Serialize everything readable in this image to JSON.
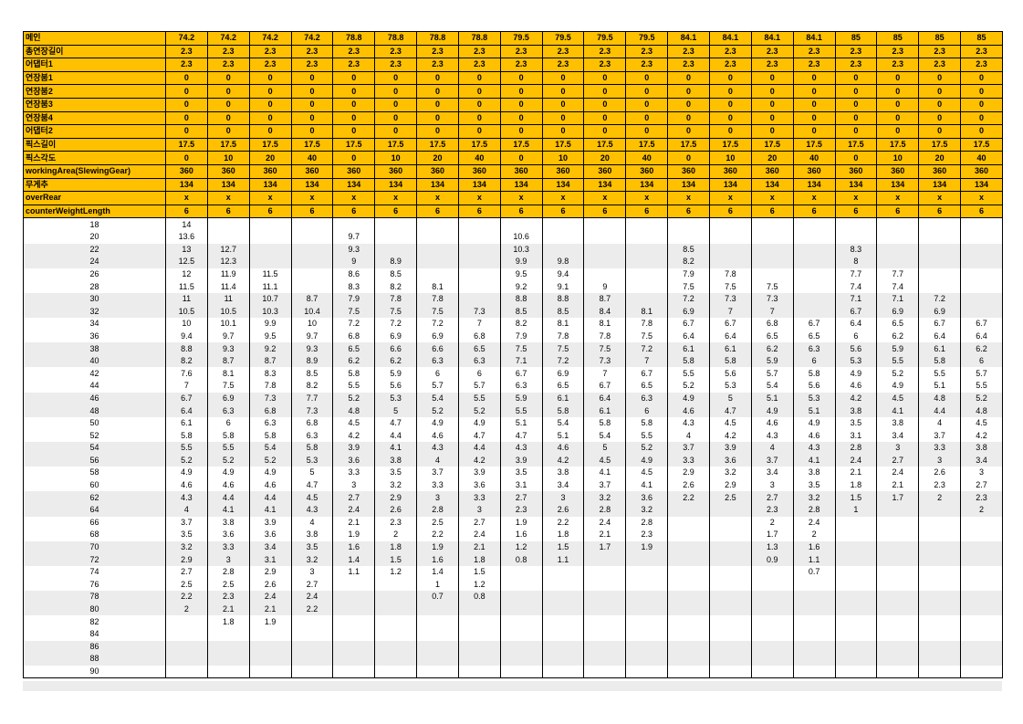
{
  "header_rows": [
    {
      "label": "메인",
      "values": [
        "74.2",
        "74.2",
        "74.2",
        "74.2",
        "78.8",
        "78.8",
        "78.8",
        "78.8",
        "79.5",
        "79.5",
        "79.5",
        "79.5",
        "84.1",
        "84.1",
        "84.1",
        "84.1",
        "85",
        "85",
        "85",
        "85"
      ]
    },
    {
      "label": "총연장길이",
      "values": [
        "2.3",
        "2.3",
        "2.3",
        "2.3",
        "2.3",
        "2.3",
        "2.3",
        "2.3",
        "2.3",
        "2.3",
        "2.3",
        "2.3",
        "2.3",
        "2.3",
        "2.3",
        "2.3",
        "2.3",
        "2.3",
        "2.3",
        "2.3"
      ]
    },
    {
      "label": "어댑터1",
      "values": [
        "2.3",
        "2.3",
        "2.3",
        "2.3",
        "2.3",
        "2.3",
        "2.3",
        "2.3",
        "2.3",
        "2.3",
        "2.3",
        "2.3",
        "2.3",
        "2.3",
        "2.3",
        "2.3",
        "2.3",
        "2.3",
        "2.3",
        "2.3"
      ]
    },
    {
      "label": "연장붐1",
      "values": [
        "0",
        "0",
        "0",
        "0",
        "0",
        "0",
        "0",
        "0",
        "0",
        "0",
        "0",
        "0",
        "0",
        "0",
        "0",
        "0",
        "0",
        "0",
        "0",
        "0"
      ]
    },
    {
      "label": "연장붐2",
      "values": [
        "0",
        "0",
        "0",
        "0",
        "0",
        "0",
        "0",
        "0",
        "0",
        "0",
        "0",
        "0",
        "0",
        "0",
        "0",
        "0",
        "0",
        "0",
        "0",
        "0"
      ]
    },
    {
      "label": "연장붐3",
      "values": [
        "0",
        "0",
        "0",
        "0",
        "0",
        "0",
        "0",
        "0",
        "0",
        "0",
        "0",
        "0",
        "0",
        "0",
        "0",
        "0",
        "0",
        "0",
        "0",
        "0"
      ]
    },
    {
      "label": "연장붐4",
      "values": [
        "0",
        "0",
        "0",
        "0",
        "0",
        "0",
        "0",
        "0",
        "0",
        "0",
        "0",
        "0",
        "0",
        "0",
        "0",
        "0",
        "0",
        "0",
        "0",
        "0"
      ]
    },
    {
      "label": "어댑터2",
      "values": [
        "0",
        "0",
        "0",
        "0",
        "0",
        "0",
        "0",
        "0",
        "0",
        "0",
        "0",
        "0",
        "0",
        "0",
        "0",
        "0",
        "0",
        "0",
        "0",
        "0"
      ]
    },
    {
      "label": "픽스길이",
      "values": [
        "17.5",
        "17.5",
        "17.5",
        "17.5",
        "17.5",
        "17.5",
        "17.5",
        "17.5",
        "17.5",
        "17.5",
        "17.5",
        "17.5",
        "17.5",
        "17.5",
        "17.5",
        "17.5",
        "17.5",
        "17.5",
        "17.5",
        "17.5"
      ]
    },
    {
      "label": "픽스각도",
      "values": [
        "0",
        "10",
        "20",
        "40",
        "0",
        "10",
        "20",
        "40",
        "0",
        "10",
        "20",
        "40",
        "0",
        "10",
        "20",
        "40",
        "0",
        "10",
        "20",
        "40"
      ]
    },
    {
      "label": "workingArea(SlewingGear)",
      "values": [
        "360",
        "360",
        "360",
        "360",
        "360",
        "360",
        "360",
        "360",
        "360",
        "360",
        "360",
        "360",
        "360",
        "360",
        "360",
        "360",
        "360",
        "360",
        "360",
        "360"
      ]
    },
    {
      "label": "무게추",
      "values": [
        "134",
        "134",
        "134",
        "134",
        "134",
        "134",
        "134",
        "134",
        "134",
        "134",
        "134",
        "134",
        "134",
        "134",
        "134",
        "134",
        "134",
        "134",
        "134",
        "134"
      ]
    },
    {
      "label": "overRear",
      "values": [
        "x",
        "x",
        "x",
        "x",
        "x",
        "x",
        "x",
        "x",
        "x",
        "x",
        "x",
        "x",
        "x",
        "x",
        "x",
        "x",
        "x",
        "x",
        "x",
        "x"
      ]
    },
    {
      "label": "counterWeightLength",
      "values": [
        "6",
        "6",
        "6",
        "6",
        "6",
        "6",
        "6",
        "6",
        "6",
        "6",
        "6",
        "6",
        "6",
        "6",
        "6",
        "6",
        "6",
        "6",
        "6",
        "6"
      ]
    }
  ],
  "data_rows": [
    {
      "radius": "18",
      "values": [
        "14",
        "",
        "",
        "",
        "",
        "",
        "",
        "",
        "",
        "",
        "",
        "",
        "",
        "",
        "",
        "",
        "",
        "",
        "",
        ""
      ]
    },
    {
      "radius": "20",
      "values": [
        "13.6",
        "",
        "",
        "",
        "9.7",
        "",
        "",
        "",
        "10.6",
        "",
        "",
        "",
        "",
        "",
        "",
        "",
        "",
        "",
        "",
        ""
      ]
    },
    {
      "radius": "22",
      "values": [
        "13",
        "12.7",
        "",
        "",
        "9.3",
        "",
        "",
        "",
        "10.3",
        "",
        "",
        "",
        "8.5",
        "",
        "",
        "",
        "8.3",
        "",
        "",
        ""
      ]
    },
    {
      "radius": "24",
      "values": [
        "12.5",
        "12.3",
        "",
        "",
        "9",
        "8.9",
        "",
        "",
        "9.9",
        "9.8",
        "",
        "",
        "8.2",
        "",
        "",
        "",
        "8",
        "",
        "",
        ""
      ]
    },
    {
      "radius": "26",
      "values": [
        "12",
        "11.9",
        "11.5",
        "",
        "8.6",
        "8.5",
        "",
        "",
        "9.5",
        "9.4",
        "",
        "",
        "7.9",
        "7.8",
        "",
        "",
        "7.7",
        "7.7",
        "",
        ""
      ]
    },
    {
      "radius": "28",
      "values": [
        "11.5",
        "11.4",
        "11.1",
        "",
        "8.3",
        "8.2",
        "8.1",
        "",
        "9.2",
        "9.1",
        "9",
        "",
        "7.5",
        "7.5",
        "7.5",
        "",
        "7.4",
        "7.4",
        "",
        ""
      ]
    },
    {
      "radius": "30",
      "values": [
        "11",
        "11",
        "10.7",
        "8.7",
        "7.9",
        "7.8",
        "7.8",
        "",
        "8.8",
        "8.8",
        "8.7",
        "",
        "7.2",
        "7.3",
        "7.3",
        "",
        "7.1",
        "7.1",
        "7.2",
        ""
      ]
    },
    {
      "radius": "32",
      "values": [
        "10.5",
        "10.5",
        "10.3",
        "10.4",
        "7.5",
        "7.5",
        "7.5",
        "7.3",
        "8.5",
        "8.5",
        "8.4",
        "8.1",
        "6.9",
        "7",
        "7",
        "",
        "6.7",
        "6.9",
        "6.9",
        ""
      ]
    },
    {
      "radius": "34",
      "values": [
        "10",
        "10.1",
        "9.9",
        "10",
        "7.2",
        "7.2",
        "7.2",
        "7",
        "8.2",
        "8.1",
        "8.1",
        "7.8",
        "6.7",
        "6.7",
        "6.8",
        "6.7",
        "6.4",
        "6.5",
        "6.7",
        "6.7"
      ]
    },
    {
      "radius": "36",
      "values": [
        "9.4",
        "9.7",
        "9.5",
        "9.7",
        "6.8",
        "6.9",
        "6.9",
        "6.8",
        "7.9",
        "7.8",
        "7.8",
        "7.5",
        "6.4",
        "6.4",
        "6.5",
        "6.5",
        "6",
        "6.2",
        "6.4",
        "6.4"
      ]
    },
    {
      "radius": "38",
      "values": [
        "8.8",
        "9.3",
        "9.2",
        "9.3",
        "6.5",
        "6.6",
        "6.6",
        "6.5",
        "7.5",
        "7.5",
        "7.5",
        "7.2",
        "6.1",
        "6.1",
        "6.2",
        "6.3",
        "5.6",
        "5.9",
        "6.1",
        "6.2"
      ]
    },
    {
      "radius": "40",
      "values": [
        "8.2",
        "8.7",
        "8.7",
        "8.9",
        "6.2",
        "6.2",
        "6.3",
        "6.3",
        "7.1",
        "7.2",
        "7.3",
        "7",
        "5.8",
        "5.8",
        "5.9",
        "6",
        "5.3",
        "5.5",
        "5.8",
        "6"
      ]
    },
    {
      "radius": "42",
      "values": [
        "7.6",
        "8.1",
        "8.3",
        "8.5",
        "5.8",
        "5.9",
        "6",
        "6",
        "6.7",
        "6.9",
        "7",
        "6.7",
        "5.5",
        "5.6",
        "5.7",
        "5.8",
        "4.9",
        "5.2",
        "5.5",
        "5.7"
      ]
    },
    {
      "radius": "44",
      "values": [
        "7",
        "7.5",
        "7.8",
        "8.2",
        "5.5",
        "5.6",
        "5.7",
        "5.7",
        "6.3",
        "6.5",
        "6.7",
        "6.5",
        "5.2",
        "5.3",
        "5.4",
        "5.6",
        "4.6",
        "4.9",
        "5.1",
        "5.5"
      ]
    },
    {
      "radius": "46",
      "values": [
        "6.7",
        "6.9",
        "7.3",
        "7.7",
        "5.2",
        "5.3",
        "5.4",
        "5.5",
        "5.9",
        "6.1",
        "6.4",
        "6.3",
        "4.9",
        "5",
        "5.1",
        "5.3",
        "4.2",
        "4.5",
        "4.8",
        "5.2"
      ]
    },
    {
      "radius": "48",
      "values": [
        "6.4",
        "6.3",
        "6.8",
        "7.3",
        "4.8",
        "5",
        "5.2",
        "5.2",
        "5.5",
        "5.8",
        "6.1",
        "6",
        "4.6",
        "4.7",
        "4.9",
        "5.1",
        "3.8",
        "4.1",
        "4.4",
        "4.8"
      ]
    },
    {
      "radius": "50",
      "values": [
        "6.1",
        "6",
        "6.3",
        "6.8",
        "4.5",
        "4.7",
        "4.9",
        "4.9",
        "5.1",
        "5.4",
        "5.8",
        "5.8",
        "4.3",
        "4.5",
        "4.6",
        "4.9",
        "3.5",
        "3.8",
        "4",
        "4.5"
      ]
    },
    {
      "radius": "52",
      "values": [
        "5.8",
        "5.8",
        "5.8",
        "6.3",
        "4.2",
        "4.4",
        "4.6",
        "4.7",
        "4.7",
        "5.1",
        "5.4",
        "5.5",
        "4",
        "4.2",
        "4.3",
        "4.6",
        "3.1",
        "3.4",
        "3.7",
        "4.2"
      ]
    },
    {
      "radius": "54",
      "values": [
        "5.5",
        "5.5",
        "5.4",
        "5.8",
        "3.9",
        "4.1",
        "4.3",
        "4.4",
        "4.3",
        "4.6",
        "5",
        "5.2",
        "3.7",
        "3.9",
        "4",
        "4.3",
        "2.8",
        "3",
        "3.3",
        "3.8"
      ]
    },
    {
      "radius": "56",
      "values": [
        "5.2",
        "5.2",
        "5.2",
        "5.3",
        "3.6",
        "3.8",
        "4",
        "4.2",
        "3.9",
        "4.2",
        "4.5",
        "4.9",
        "3.3",
        "3.6",
        "3.7",
        "4.1",
        "2.4",
        "2.7",
        "3",
        "3.4"
      ]
    },
    {
      "radius": "58",
      "values": [
        "4.9",
        "4.9",
        "4.9",
        "5",
        "3.3",
        "3.5",
        "3.7",
        "3.9",
        "3.5",
        "3.8",
        "4.1",
        "4.5",
        "2.9",
        "3.2",
        "3.4",
        "3.8",
        "2.1",
        "2.4",
        "2.6",
        "3"
      ]
    },
    {
      "radius": "60",
      "values": [
        "4.6",
        "4.6",
        "4.6",
        "4.7",
        "3",
        "3.2",
        "3.3",
        "3.6",
        "3.1",
        "3.4",
        "3.7",
        "4.1",
        "2.6",
        "2.9",
        "3",
        "3.5",
        "1.8",
        "2.1",
        "2.3",
        "2.7"
      ]
    },
    {
      "radius": "62",
      "values": [
        "4.3",
        "4.4",
        "4.4",
        "4.5",
        "2.7",
        "2.9",
        "3",
        "3.3",
        "2.7",
        "3",
        "3.2",
        "3.6",
        "2.2",
        "2.5",
        "2.7",
        "3.2",
        "1.5",
        "1.7",
        "2",
        "2.3"
      ]
    },
    {
      "radius": "64",
      "values": [
        "4",
        "4.1",
        "4.1",
        "4.3",
        "2.4",
        "2.6",
        "2.8",
        "3",
        "2.3",
        "2.6",
        "2.8",
        "3.2",
        "",
        "",
        "2.3",
        "2.8",
        "1",
        "",
        "",
        "2"
      ]
    },
    {
      "radius": "66",
      "values": [
        "3.7",
        "3.8",
        "3.9",
        "4",
        "2.1",
        "2.3",
        "2.5",
        "2.7",
        "1.9",
        "2.2",
        "2.4",
        "2.8",
        "",
        "",
        "2",
        "2.4",
        "",
        "",
        "",
        ""
      ]
    },
    {
      "radius": "68",
      "values": [
        "3.5",
        "3.6",
        "3.6",
        "3.8",
        "1.9",
        "2",
        "2.2",
        "2.4",
        "1.6",
        "1.8",
        "2.1",
        "2.3",
        "",
        "",
        "1.7",
        "2",
        "",
        "",
        "",
        ""
      ]
    },
    {
      "radius": "70",
      "values": [
        "3.2",
        "3.3",
        "3.4",
        "3.5",
        "1.6",
        "1.8",
        "1.9",
        "2.1",
        "1.2",
        "1.5",
        "1.7",
        "1.9",
        "",
        "",
        "1.3",
        "1.6",
        "",
        "",
        "",
        ""
      ]
    },
    {
      "radius": "72",
      "values": [
        "2.9",
        "3",
        "3.1",
        "3.2",
        "1.4",
        "1.5",
        "1.6",
        "1.8",
        "0.8",
        "1.1",
        "",
        "",
        "",
        "",
        "0.9",
        "1.1",
        "",
        "",
        "",
        ""
      ]
    },
    {
      "radius": "74",
      "values": [
        "2.7",
        "2.8",
        "2.9",
        "3",
        "1.1",
        "1.2",
        "1.4",
        "1.5",
        "",
        "",
        "",
        "",
        "",
        "",
        "",
        "0.7",
        "",
        "",
        "",
        ""
      ]
    },
    {
      "radius": "76",
      "values": [
        "2.5",
        "2.5",
        "2.6",
        "2.7",
        "",
        "",
        "1",
        "1.2",
        "",
        "",
        "",
        "",
        "",
        "",
        "",
        "",
        "",
        "",
        "",
        ""
      ]
    },
    {
      "radius": "78",
      "values": [
        "2.2",
        "2.3",
        "2.4",
        "2.4",
        "",
        "",
        "0.7",
        "0.8",
        "",
        "",
        "",
        "",
        "",
        "",
        "",
        "",
        "",
        "",
        "",
        ""
      ]
    },
    {
      "radius": "80",
      "values": [
        "2",
        "2.1",
        "2.1",
        "2.2",
        "",
        "",
        "",
        "",
        "",
        "",
        "",
        "",
        "",
        "",
        "",
        "",
        "",
        "",
        "",
        ""
      ]
    },
    {
      "radius": "82",
      "values": [
        "",
        "1.8",
        "1.9",
        "",
        "",
        "",
        "",
        "",
        "",
        "",
        "",
        "",
        "",
        "",
        "",
        "",
        "",
        "",
        "",
        ""
      ]
    },
    {
      "radius": "84",
      "values": [
        "",
        "",
        "",
        "",
        "",
        "",
        "",
        "",
        "",
        "",
        "",
        "",
        "",
        "",
        "",
        "",
        "",
        "",
        "",
        ""
      ]
    },
    {
      "radius": "86",
      "values": [
        "",
        "",
        "",
        "",
        "",
        "",
        "",
        "",
        "",
        "",
        "",
        "",
        "",
        "",
        "",
        "",
        "",
        "",
        "",
        ""
      ]
    },
    {
      "radius": "88",
      "values": [
        "",
        "",
        "",
        "",
        "",
        "",
        "",
        "",
        "",
        "",
        "",
        "",
        "",
        "",
        "",
        "",
        "",
        "",
        "",
        ""
      ]
    },
    {
      "radius": "90",
      "values": [
        "",
        "",
        "",
        "",
        "",
        "",
        "",
        "",
        "",
        "",
        "",
        "",
        "",
        "",
        "",
        "",
        "",
        "",
        "",
        ""
      ]
    }
  ],
  "colors": {
    "header_fill": "#FFC000",
    "band_fill": "#ECECEC",
    "border": "#000000"
  }
}
